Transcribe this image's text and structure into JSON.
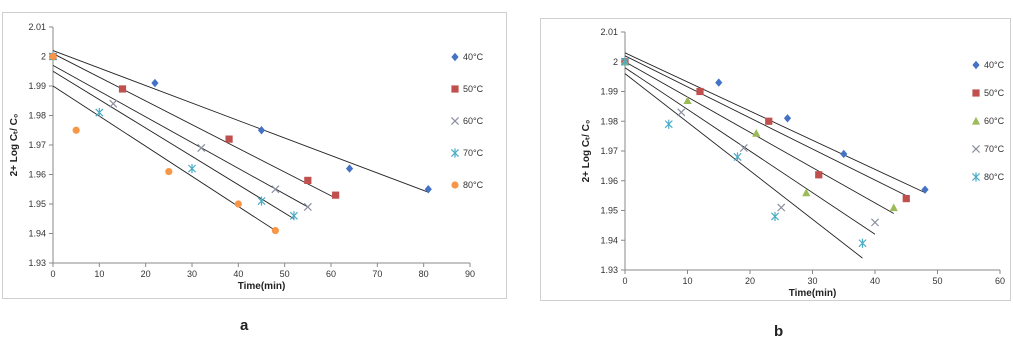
{
  "chart_data": [
    {
      "type": "scatter",
      "panel": "a",
      "xlabel": "Time(min)",
      "ylabel": "2+ Log Cₜ/ C₀",
      "xlim": [
        0,
        90
      ],
      "ylim": [
        1.93,
        2.01
      ],
      "x_ticks": [
        "0",
        "10",
        "20",
        "30",
        "40",
        "50",
        "60",
        "70",
        "80",
        "90"
      ],
      "y_ticks": [
        "1.93",
        "1.94",
        "1.95",
        "1.96",
        "1.97",
        "1.98",
        "1.99",
        "2",
        "2.01"
      ],
      "grid": false,
      "legend": "right",
      "series": [
        {
          "name": "40°C",
          "marker": "diamond",
          "color": "#4472c4",
          "points": [
            [
              0,
              2.0
            ],
            [
              22,
              1.991
            ],
            [
              45,
              1.975
            ],
            [
              64,
              1.962
            ],
            [
              81,
              1.955
            ]
          ],
          "fit": [
            [
              0,
              2.002
            ],
            [
              81,
              1.954
            ]
          ]
        },
        {
          "name": "50°C",
          "marker": "square",
          "color": "#c0504d",
          "points": [
            [
              0,
              2.0
            ],
            [
              15,
              1.989
            ],
            [
              38,
              1.972
            ],
            [
              55,
              1.958
            ],
            [
              61,
              1.953
            ]
          ],
          "fit": [
            [
              0,
              2.001
            ],
            [
              61,
              1.952
            ]
          ]
        },
        {
          "name": "60°C",
          "marker": "x",
          "color": "#8a8fa0",
          "points": [
            [
              0,
              2.0
            ],
            [
              13,
              1.984
            ],
            [
              32,
              1.969
            ],
            [
              48,
              1.955
            ],
            [
              55,
              1.949
            ]
          ],
          "fit": [
            [
              0,
              1.997
            ],
            [
              55,
              1.949
            ]
          ]
        },
        {
          "name": "70°C",
          "marker": "asterisk",
          "color": "#4bacc6",
          "points": [
            [
              0,
              2.0
            ],
            [
              10,
              1.981
            ],
            [
              30,
              1.962
            ],
            [
              45,
              1.951
            ],
            [
              52,
              1.946
            ]
          ],
          "fit": [
            [
              0,
              1.995
            ],
            [
              52,
              1.945
            ]
          ]
        },
        {
          "name": "80°C",
          "marker": "circle",
          "color": "#f79646",
          "points": [
            [
              0,
              2.0
            ],
            [
              5,
              1.975
            ],
            [
              25,
              1.961
            ],
            [
              40,
              1.95
            ],
            [
              48,
              1.941
            ]
          ],
          "fit": [
            [
              0,
              1.99
            ],
            [
              48,
              1.941
            ]
          ]
        }
      ]
    },
    {
      "type": "scatter",
      "panel": "b",
      "xlabel": "Time(min)",
      "ylabel": "2+ Log Cₜ/ C₀",
      "xlim": [
        0,
        60
      ],
      "ylim": [
        1.93,
        2.01
      ],
      "x_ticks": [
        "0",
        "10",
        "20",
        "30",
        "40",
        "50",
        "60"
      ],
      "y_ticks": [
        "1.93",
        "1.94",
        "1.95",
        "1.96",
        "1.97",
        "1.98",
        "1.99",
        "2",
        "2.01"
      ],
      "grid": false,
      "legend": "right",
      "series": [
        {
          "name": "40°C",
          "marker": "diamond",
          "color": "#4472c4",
          "points": [
            [
              0,
              2.0
            ],
            [
              15,
              1.993
            ],
            [
              26,
              1.981
            ],
            [
              35,
              1.969
            ],
            [
              48,
              1.957
            ]
          ],
          "fit": [
            [
              0,
              2.003
            ],
            [
              48,
              1.956
            ]
          ]
        },
        {
          "name": "50°C",
          "marker": "square",
          "color": "#c0504d",
          "points": [
            [
              0,
              2.0
            ],
            [
              12,
              1.99
            ],
            [
              23,
              1.98
            ],
            [
              31,
              1.962
            ],
            [
              45,
              1.954
            ]
          ],
          "fit": [
            [
              0,
              2.002
            ],
            [
              45,
              1.955
            ]
          ]
        },
        {
          "name": "60°C",
          "marker": "triangle",
          "color": "#9bbb59",
          "points": [
            [
              0,
              2.0
            ],
            [
              10,
              1.987
            ],
            [
              21,
              1.976
            ],
            [
              29,
              1.956
            ],
            [
              43,
              1.951
            ]
          ],
          "fit": [
            [
              0,
              2.0
            ],
            [
              43,
              1.949
            ]
          ]
        },
        {
          "name": "70°C",
          "marker": "x",
          "color": "#8a8fa0",
          "points": [
            [
              0,
              2.0
            ],
            [
              9,
              1.983
            ],
            [
              19,
              1.971
            ],
            [
              25,
              1.951
            ],
            [
              40,
              1.946
            ]
          ],
          "fit": [
            [
              0,
              1.998
            ],
            [
              40,
              1.942
            ]
          ]
        },
        {
          "name": "80°C",
          "marker": "asterisk",
          "color": "#4bacc6",
          "points": [
            [
              0,
              2.0
            ],
            [
              7,
              1.979
            ],
            [
              18,
              1.968
            ],
            [
              24,
              1.948
            ],
            [
              38,
              1.939
            ]
          ],
          "fit": [
            [
              0,
              1.996
            ],
            [
              38,
              1.934
            ]
          ]
        }
      ]
    }
  ],
  "captions": {
    "a": "a",
    "b": "b"
  }
}
